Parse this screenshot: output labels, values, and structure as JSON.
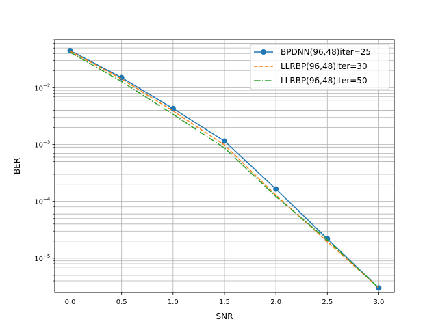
{
  "chart_data": {
    "type": "line",
    "title": "",
    "xlabel": "SNR",
    "ylabel": "BER",
    "xscale": "linear",
    "yscale": "log",
    "xlim": [
      -0.15,
      3.15
    ],
    "ylim": [
      2.5e-06,
      0.07
    ],
    "grid": true,
    "grid_minor_y": true,
    "legend_position": "top-right",
    "x_ticks": [
      {
        "value": 0.0,
        "label": "0.0"
      },
      {
        "value": 0.5,
        "label": "0.5"
      },
      {
        "value": 1.0,
        "label": "1.0"
      },
      {
        "value": 1.5,
        "label": "1.5"
      },
      {
        "value": 2.0,
        "label": "2.0"
      },
      {
        "value": 2.5,
        "label": "2.5"
      },
      {
        "value": 3.0,
        "label": "3.0"
      }
    ],
    "y_ticks": [
      {
        "value": 1e-05,
        "base": "10",
        "exp": "−5"
      },
      {
        "value": 0.0001,
        "base": "10",
        "exp": "−4"
      },
      {
        "value": 0.001,
        "base": "10",
        "exp": "−3"
      },
      {
        "value": 0.01,
        "base": "10",
        "exp": "−2"
      }
    ],
    "x": [
      0.0,
      0.5,
      1.0,
      1.5,
      2.0,
      2.5,
      3.0
    ],
    "series": [
      {
        "name": "BPDNN(96,48)iter=25",
        "color": "#1f77b4",
        "style": "solid",
        "marker": "circle",
        "values": [
          0.045,
          0.015,
          0.0043,
          0.00115,
          0.000165,
          2.2e-05,
          3e-06
        ]
      },
      {
        "name": "LLRBP(96,48)iter=30",
        "color": "#ff7f0e",
        "style": "dashed",
        "marker": "none",
        "values": [
          0.044,
          0.0142,
          0.0039,
          0.00098,
          0.000128,
          1.95e-05,
          3e-06
        ]
      },
      {
        "name": "LLRBP(96,48)iter=50",
        "color": "#2ca02c",
        "style": "dashdot",
        "marker": "none",
        "values": [
          0.042,
          0.0128,
          0.0034,
          0.00087,
          0.000122,
          2.1e-05,
          3e-06
        ]
      }
    ]
  }
}
